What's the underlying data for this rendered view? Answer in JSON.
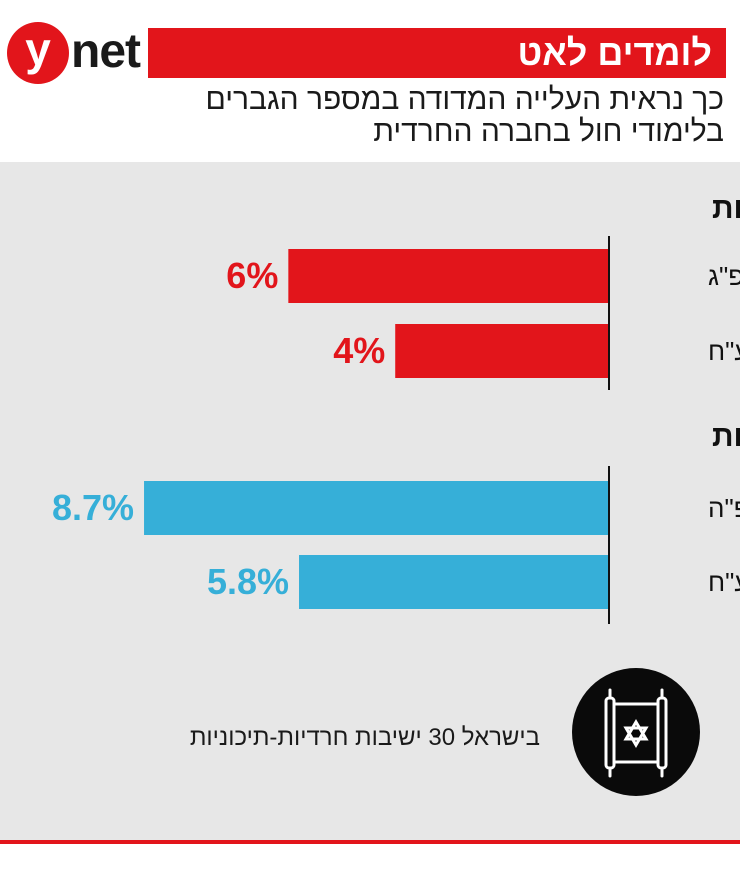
{
  "brand": {
    "logo_letter": "y",
    "logo_word": "net"
  },
  "header": {
    "title": "לומדים לאט",
    "subtitle": "כך נראית העלייה המדודה במספר הגברים בלימודי חול בחברה החרדית"
  },
  "colors": {
    "red": "#e2151b",
    "blue": "#36afd8",
    "panel": "#e7e7e7"
  },
  "chart_data": [
    {
      "type": "bar",
      "orientation": "horizontal",
      "title": "אחוז הבוגרים הזכאים לבגרות",
      "categories": [
        "תשפ\"ג",
        "תשע\"ח"
      ],
      "values": [
        6,
        4
      ],
      "labels": [
        "6%",
        "4%"
      ],
      "unit": "%",
      "xlim": [
        0,
        9
      ]
    },
    {
      "type": "bar",
      "orientation": "horizontal",
      "title": "אחוז הלומדים לבגרות",
      "categories": [
        "תשפ\"ה",
        "תשע\"ח"
      ],
      "values": [
        8.7,
        5.8
      ],
      "labels": [
        "8.7%",
        "5.8%"
      ],
      "unit": "%",
      "xlim": [
        0,
        9
      ]
    }
  ],
  "footer": {
    "note": "בישראל 30 ישיבות חרדיות-תיכוניות",
    "icon": "torah-scroll-icon"
  }
}
